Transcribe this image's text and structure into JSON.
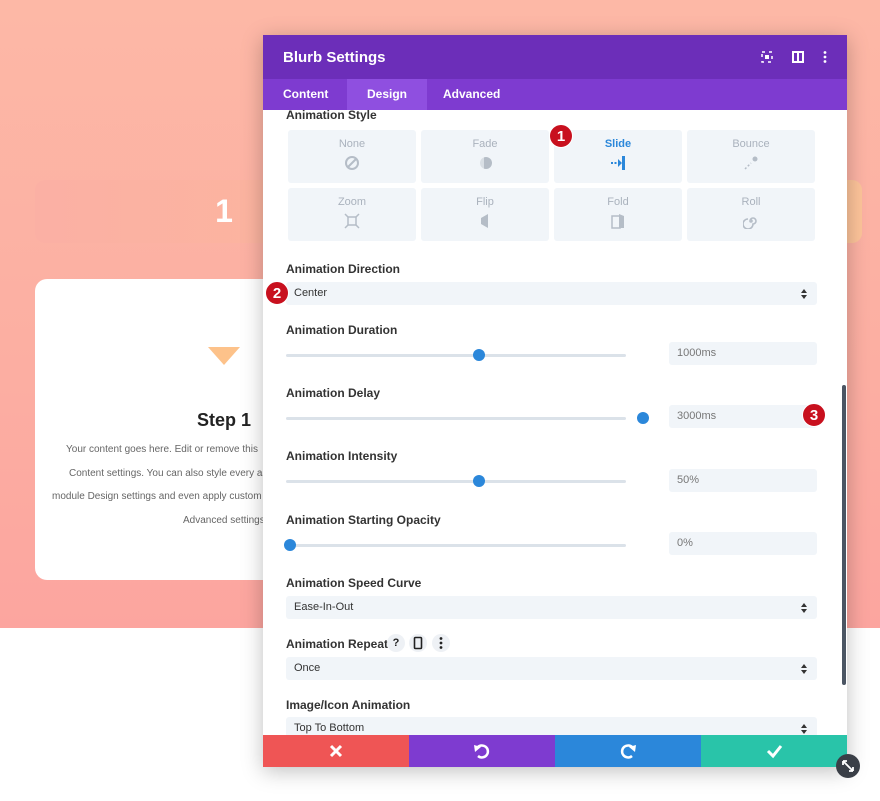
{
  "background": {
    "banner_number": "1",
    "card": {
      "title": "Step 1",
      "lines": [
        "Your content goes here. Edit or remove this",
        "Content settings. You can also style every as",
        "module Design settings and even apply custom",
        "Advanced settings"
      ]
    }
  },
  "modal": {
    "title": "Blurb Settings",
    "tabs": [
      "Content",
      "Design",
      "Advanced"
    ],
    "animation_style": {
      "label": "Animation Style",
      "options": [
        "None",
        "Fade",
        "Slide",
        "Bounce",
        "Zoom",
        "Flip",
        "Fold",
        "Roll"
      ]
    },
    "badges": [
      "1",
      "2",
      "3"
    ],
    "direction": {
      "label": "Animation Direction",
      "value": "Center"
    },
    "duration": {
      "label": "Animation Duration",
      "value": "1000ms"
    },
    "delay": {
      "label": "Animation Delay",
      "value": "3000ms"
    },
    "intensity": {
      "label": "Animation Intensity",
      "value": "50%"
    },
    "opacity": {
      "label": "Animation Starting Opacity",
      "value": "0%"
    },
    "speed_curve": {
      "label": "Animation Speed Curve",
      "value": "Ease-In-Out"
    },
    "repeat": {
      "label": "Animation Repeat",
      "value": "Once",
      "icons": [
        "?"
      ]
    },
    "icon_animation": {
      "label": "Image/Icon Animation",
      "value": "Top To Bottom"
    }
  }
}
